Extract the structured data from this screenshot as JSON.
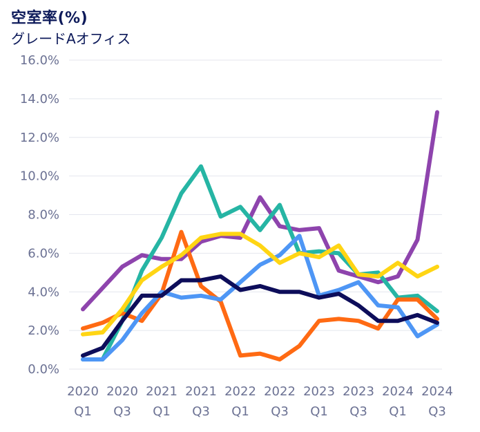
{
  "chart_data": {
    "type": "line",
    "title": "空室率(%)",
    "subtitle": "グレードAオフィス",
    "categories": [
      "2020 Q1",
      "2020 Q2",
      "2020 Q3",
      "2020 Q4",
      "2021 Q1",
      "2021 Q2",
      "2021 Q3",
      "2021 Q4",
      "2022 Q1",
      "2022 Q2",
      "2022 Q3",
      "2022 Q4",
      "2023 Q1",
      "2023 Q2",
      "2023 Q3",
      "2023 Q4",
      "2024 Q1",
      "2024 Q2",
      "2024 Q3"
    ],
    "x_tick_labels": [
      {
        "year": "2020",
        "quarter": "Q1",
        "index": 0
      },
      {
        "year": "2020",
        "quarter": "Q3",
        "index": 2
      },
      {
        "year": "2021",
        "quarter": "Q1",
        "index": 4
      },
      {
        "year": "2021",
        "quarter": "Q3",
        "index": 6
      },
      {
        "year": "2022",
        "quarter": "Q1",
        "index": 8
      },
      {
        "year": "2022",
        "quarter": "Q3",
        "index": 10
      },
      {
        "year": "2023",
        "quarter": "Q1",
        "index": 12
      },
      {
        "year": "2023",
        "quarter": "Q3",
        "index": 14
      },
      {
        "year": "2024",
        "quarter": "Q1",
        "index": 16
      },
      {
        "year": "2024",
        "quarter": "Q3",
        "index": 18
      }
    ],
    "y_ticks": [
      0,
      2,
      4,
      6,
      8,
      10,
      12,
      14,
      16
    ],
    "y_tick_labels": [
      "0.0%",
      "2.0%",
      "4.0%",
      "6.0%",
      "8.0%",
      "10.0%",
      "12.0%",
      "14.0%",
      "16.0%"
    ],
    "ylim": [
      0,
      16
    ],
    "grid": true,
    "series": [
      {
        "color": "#8e44ad",
        "values": [
          3.1,
          4.2,
          5.3,
          5.9,
          5.7,
          5.7,
          6.6,
          6.9,
          6.8,
          8.9,
          7.4,
          7.2,
          7.3,
          5.1,
          4.8,
          4.5,
          4.8,
          6.7,
          13.3
        ]
      },
      {
        "color": "#26b5a4",
        "values": [
          0.5,
          0.5,
          2.5,
          5.1,
          6.8,
          9.1,
          10.5,
          7.9,
          8.4,
          7.2,
          8.5,
          6.0,
          6.1,
          6.0,
          4.9,
          5.0,
          3.7,
          3.8,
          3.0
        ]
      },
      {
        "color": "#ff6a13",
        "values": [
          2.1,
          2.4,
          2.9,
          2.5,
          3.9,
          7.1,
          4.3,
          3.5,
          0.7,
          0.8,
          0.5,
          1.2,
          2.5,
          2.6,
          2.5,
          2.1,
          3.6,
          3.6,
          2.6
        ]
      },
      {
        "color": "#4e96f5",
        "values": [
          0.5,
          0.5,
          1.5,
          2.9,
          4.0,
          3.7,
          3.8,
          3.6,
          4.5,
          5.4,
          5.9,
          6.9,
          3.8,
          4.1,
          4.5,
          3.3,
          3.2,
          1.7,
          2.3
        ]
      },
      {
        "color": "#0d0d5a",
        "values": [
          0.7,
          1.1,
          2.5,
          3.8,
          3.8,
          4.6,
          4.6,
          4.8,
          4.1,
          4.3,
          4.0,
          4.0,
          3.7,
          3.9,
          3.3,
          2.5,
          2.5,
          2.8,
          2.4
        ]
      },
      {
        "color": "#ffd514",
        "values": [
          1.8,
          1.9,
          3.1,
          4.6,
          5.3,
          5.9,
          6.8,
          7.0,
          7.0,
          6.4,
          5.5,
          6.0,
          5.8,
          6.4,
          4.9,
          4.8,
          5.5,
          4.8,
          5.3
        ]
      }
    ]
  }
}
